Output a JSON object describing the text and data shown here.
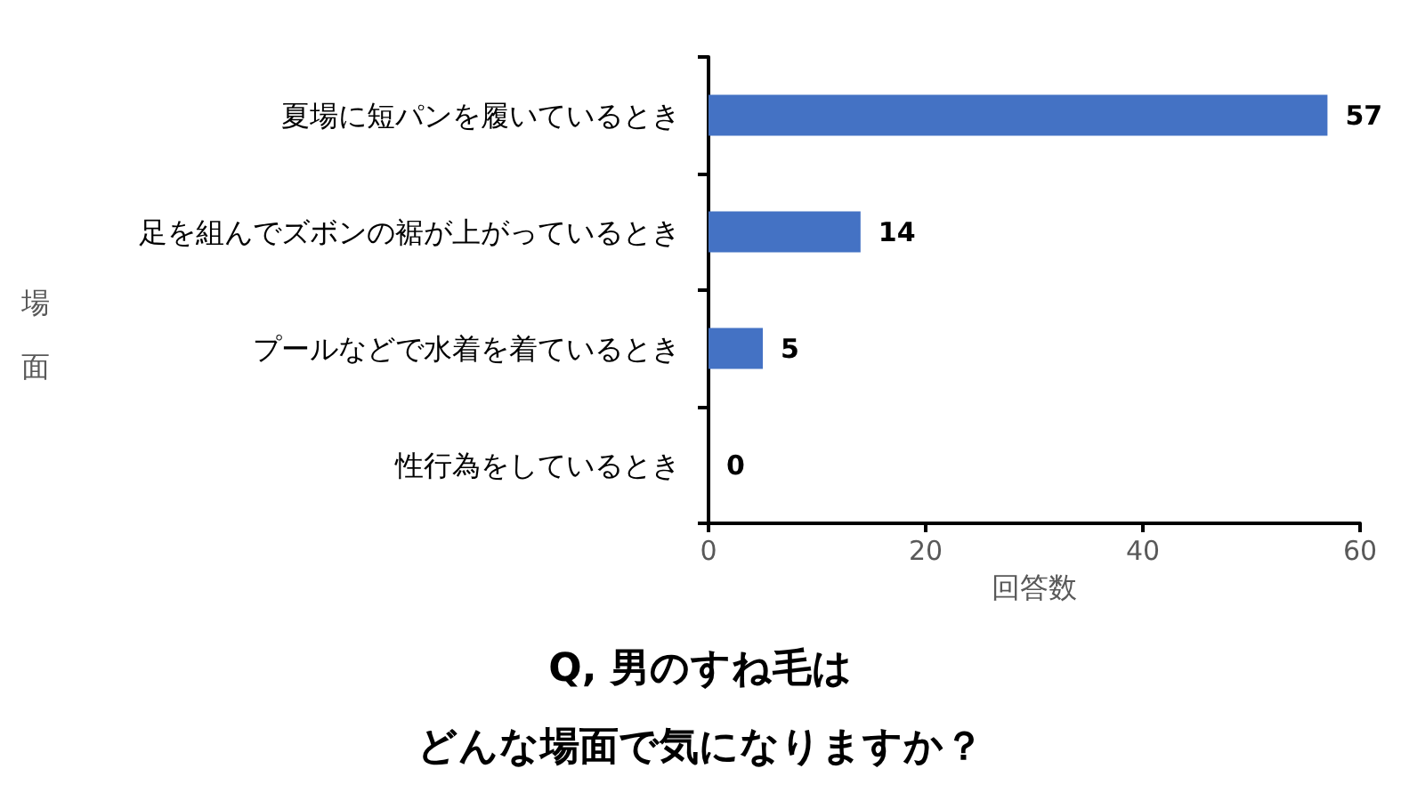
{
  "chart_data": {
    "type": "bar",
    "orientation": "horizontal",
    "title": "Q, 男のすね毛は",
    "subtitle": "どんな場面で気になりますか？",
    "xlabel": "回答数",
    "ylabel": "場面",
    "categories": [
      "夏場に短パンを履いているとき",
      "足を組んでズボンの裾が上がっているとき",
      "プールなどで水着を着ているとき",
      "性行為をしているとき"
    ],
    "values": [
      57,
      14,
      5,
      0
    ],
    "color": "#4472c4",
    "data_labels": true,
    "xlim": [
      0,
      60
    ],
    "xticks": [
      0,
      20,
      40,
      60
    ],
    "grid": false
  }
}
